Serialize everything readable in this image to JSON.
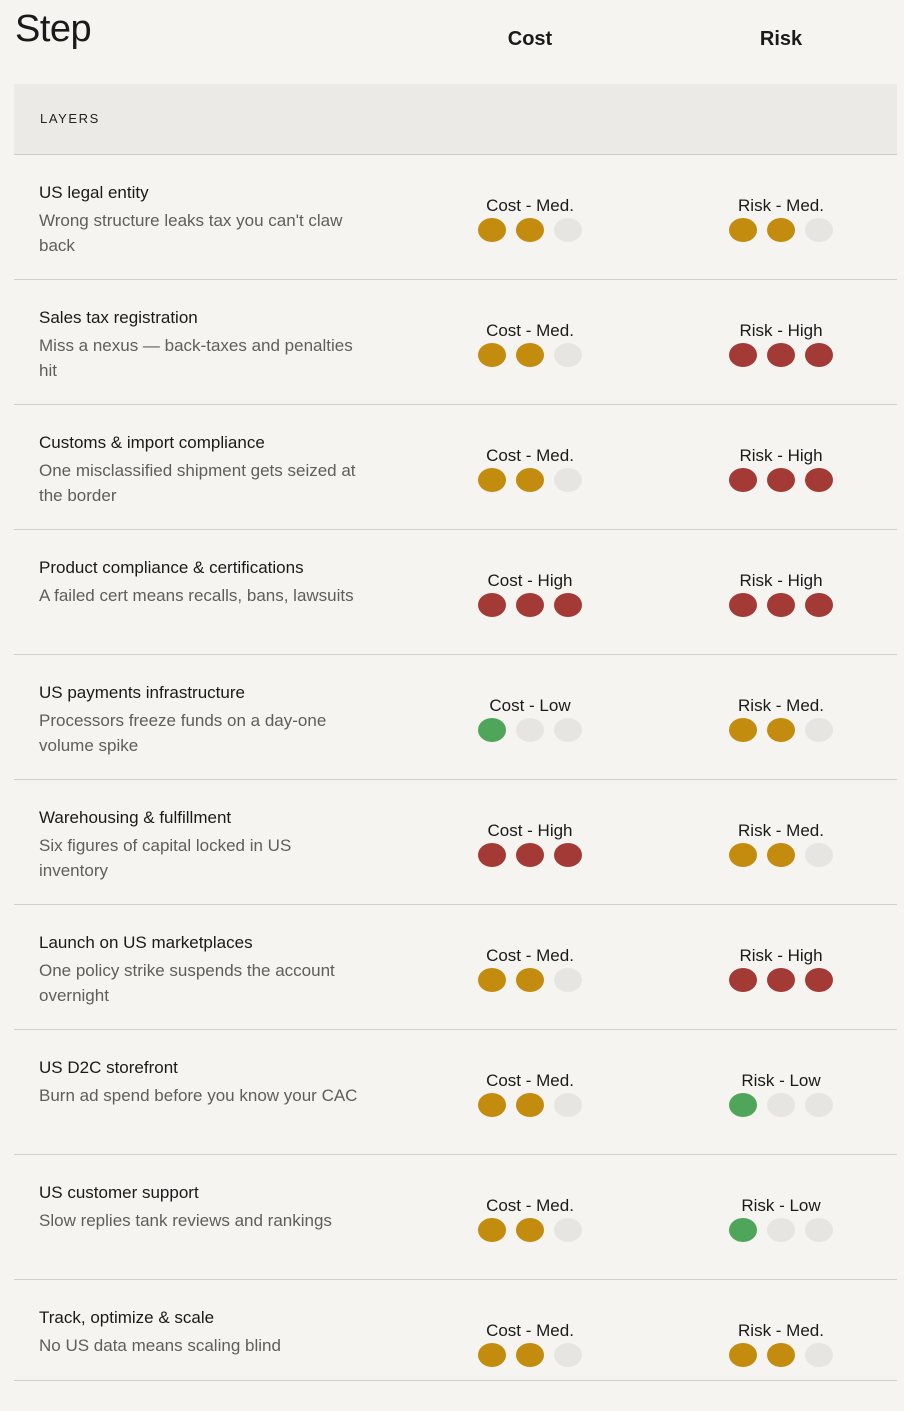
{
  "header": {
    "step_label": "Step",
    "cost_label": "Cost",
    "risk_label": "Risk"
  },
  "section": {
    "label": "LAYERS"
  },
  "colors": {
    "med": "#c38c0f",
    "high": "#a43a36",
    "low": "#4fa65a",
    "empty": "#e6e5e1"
  },
  "rows": [
    {
      "title": "US legal entity",
      "desc": "Wrong structure leaks tax you can't claw back",
      "cost": {
        "label": "Cost - Med.",
        "level": "med",
        "filled": 2
      },
      "risk": {
        "label": "Risk - Med.",
        "level": "med",
        "filled": 2
      }
    },
    {
      "title": "Sales tax registration",
      "desc": "Miss a nexus — back-taxes and penalties hit",
      "cost": {
        "label": "Cost - Med.",
        "level": "med",
        "filled": 2
      },
      "risk": {
        "label": "Risk - High",
        "level": "high",
        "filled": 3
      }
    },
    {
      "title": "Customs & import compliance",
      "desc": "One misclassified shipment gets seized at the border",
      "cost": {
        "label": "Cost - Med.",
        "level": "med",
        "filled": 2
      },
      "risk": {
        "label": "Risk - High",
        "level": "high",
        "filled": 3
      }
    },
    {
      "title": "Product compliance & certifications",
      "desc": "A failed cert means recalls, bans, lawsuits",
      "cost": {
        "label": "Cost - High",
        "level": "high",
        "filled": 3
      },
      "risk": {
        "label": "Risk - High",
        "level": "high",
        "filled": 3
      }
    },
    {
      "title": "US payments infrastructure",
      "desc": "Processors freeze funds on a day-one volume spike",
      "cost": {
        "label": "Cost - Low",
        "level": "low",
        "filled": 1
      },
      "risk": {
        "label": "Risk - Med.",
        "level": "med",
        "filled": 2
      }
    },
    {
      "title": "Warehousing & fulfillment",
      "desc": "Six figures of capital locked in US inventory",
      "cost": {
        "label": "Cost - High",
        "level": "high",
        "filled": 3
      },
      "risk": {
        "label": "Risk - Med.",
        "level": "med",
        "filled": 2
      }
    },
    {
      "title": "Launch on US marketplaces",
      "desc": "One policy strike suspends the account overnight",
      "cost": {
        "label": "Cost - Med.",
        "level": "med",
        "filled": 2
      },
      "risk": {
        "label": "Risk - High",
        "level": "high",
        "filled": 3
      }
    },
    {
      "title": "US D2C storefront",
      "desc": "Burn ad spend before you know your CAC",
      "cost": {
        "label": "Cost - Med.",
        "level": "med",
        "filled": 2
      },
      "risk": {
        "label": "Risk - Low",
        "level": "low",
        "filled": 1
      }
    },
    {
      "title": "US customer support",
      "desc": "Slow replies tank reviews and rankings",
      "cost": {
        "label": "Cost - Med.",
        "level": "med",
        "filled": 2
      },
      "risk": {
        "label": "Risk - Low",
        "level": "low",
        "filled": 1
      }
    },
    {
      "title": "Track, optimize & scale",
      "desc": "No US data means scaling blind",
      "cost": {
        "label": "Cost - Med.",
        "level": "med",
        "filled": 2
      },
      "risk": {
        "label": "Risk - Med.",
        "level": "med",
        "filled": 2
      }
    }
  ]
}
